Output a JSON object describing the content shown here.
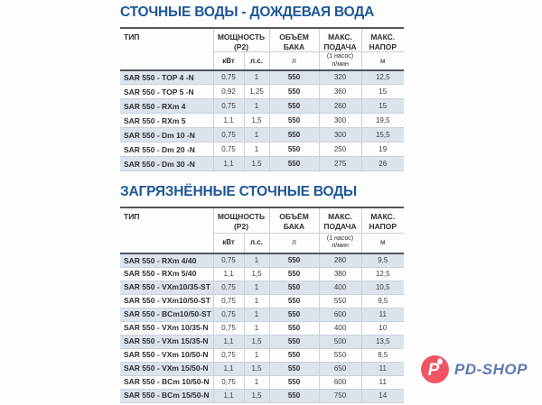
{
  "colors": {
    "title_blue": "#1f5796",
    "row_stripe": "#dce3ea",
    "border_dark": "#51565b",
    "border_light": "#cbd1d8",
    "logo_red": "#f15563",
    "logo_text_blue": "#5f7ab2"
  },
  "sections": [
    {
      "title": "СТОЧНЫЕ ВОДЫ - ДОЖДЕВАЯ ВОДА",
      "header": {
        "type": "ТИП",
        "power_l1": "МОЩНОСТЬ",
        "power_l2": "(Р2)",
        "volume_l1": "ОБЪЁМ",
        "volume_l2": "БАКА",
        "flow_l1": "МАКС.",
        "flow_l2": "ПОДАЧА",
        "head_l1": "МАКС.",
        "head_l2": "НАПОР",
        "unit_kw": "кВт",
        "unit_hp": "л.с.",
        "unit_l": "л",
        "unit_flow_l1": "(1 насос)",
        "unit_flow_l2": "л/мин",
        "unit_m": "м"
      },
      "rows": [
        [
          "SAR 550 - TOP 4 -N",
          "0,75",
          "1",
          "550",
          "320",
          "12,5"
        ],
        [
          "SAR 550 - TOP 5 -N",
          "0,92",
          "1,25",
          "550",
          "360",
          "15"
        ],
        [
          "SAR 550 - RXm 4",
          "0,75",
          "1",
          "550",
          "260",
          "15"
        ],
        [
          "SAR 550 - RXm 5",
          "1,1",
          "1,5",
          "550",
          "300",
          "19,5"
        ],
        [
          "SAR 550 - Dm 10 -N",
          "0,75",
          "1",
          "550",
          "300",
          "15,5"
        ],
        [
          "SAR 550 - Dm 20 -N",
          "0,75",
          "1",
          "550",
          "250",
          "19"
        ],
        [
          "SAR 550 - Dm 30 -N",
          "1,1",
          "1,5",
          "550",
          "275",
          "26"
        ]
      ]
    },
    {
      "title": "ЗАГРЯЗНЁННЫЕ СТОЧНЫЕ ВОДЫ",
      "header": {
        "type": "ТИП",
        "power_l1": "МОЩНОСТЬ",
        "power_l2": "(Р2)",
        "volume_l1": "ОБЪЁМ",
        "volume_l2": "БАКА",
        "flow_l1": "МАКС.",
        "flow_l2": "ПОДАЧА",
        "head_l1": "МАКС.",
        "head_l2": "НАПОР",
        "unit_kw": "кВт",
        "unit_hp": "л.с.",
        "unit_l": "л",
        "unit_flow_l1": "(1 насос)",
        "unit_flow_l2": "л/мин",
        "unit_m": "м"
      },
      "rows": [
        [
          "SAR 550 - RXm 4/40",
          "0,75",
          "1",
          "550",
          "280",
          "9,5"
        ],
        [
          "SAR 550 - RXm 5/40",
          "1,1",
          "1,5",
          "550",
          "380",
          "12,5"
        ],
        [
          "SAR 550 - VXm10/35-ST",
          "0,75",
          "1",
          "550",
          "400",
          "10,5"
        ],
        [
          "SAR 550 - VXm10/50-ST",
          "0,75",
          "1",
          "550",
          "550",
          "9,5"
        ],
        [
          "SAR 550 - BCm10/50-ST",
          "0,75",
          "1",
          "550",
          "600",
          "11"
        ],
        [
          "SAR 550 - VXm 10/35-N",
          "0,75",
          "1",
          "550",
          "400",
          "10"
        ],
        [
          "SAR 550 - VXm 15/35-N",
          "1,1",
          "1,5",
          "550",
          "500",
          "13,5"
        ],
        [
          "SAR 550 - VXm 10/50-N",
          "0,75",
          "1",
          "550",
          "550",
          "8,5"
        ],
        [
          "SAR 550 - VXm 15/50-N",
          "1,1",
          "1,5",
          "550",
          "650",
          "11"
        ],
        [
          "SAR 550 - BCm 10/50-N",
          "0,75",
          "1",
          "550",
          "600",
          "11"
        ],
        [
          "SAR 550 - BCm 15/50-N",
          "1,1",
          "1,5",
          "550",
          "750",
          "14"
        ]
      ]
    }
  ],
  "logo": {
    "brand": "PD-SHOP",
    "icon_letter": "P"
  }
}
